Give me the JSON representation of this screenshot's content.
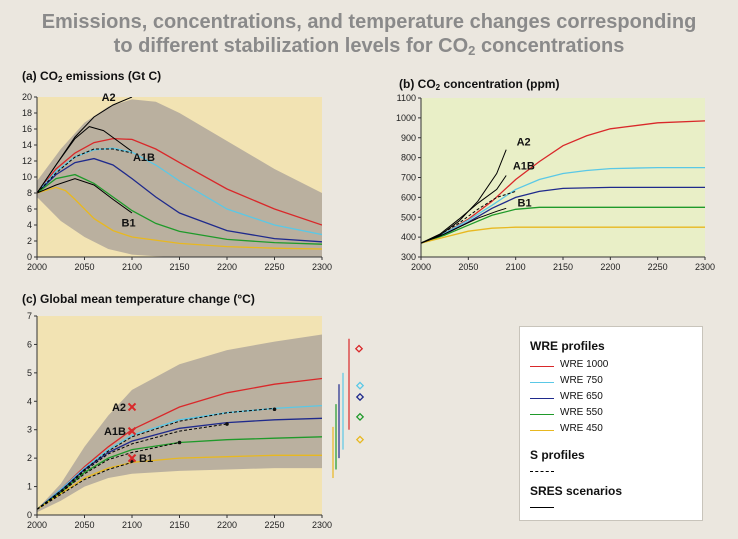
{
  "title": {
    "line1": "Emissions, concentrations, and temperature changes corresponding",
    "line2_pre": "to different stabilization levels for CO",
    "line2_sub": "2",
    "line2_post": " concentrations"
  },
  "colors": {
    "wre1000": "#d9282a",
    "wre750": "#5ac8e6",
    "wre650": "#1f2a8c",
    "wre550": "#1f9a2a",
    "wre450": "#e8b820",
    "sres": "#000000",
    "band": "#b0a79b",
    "bg_emissions": "#f2e3b3",
    "bg_concentration": "#e9efc7",
    "bg_temperature": "#f2e3b3"
  },
  "legend": {
    "wre_heading": "WRE profiles",
    "items": [
      {
        "key": "wre1000",
        "label": "WRE 1000"
      },
      {
        "key": "wre750",
        "label": "WRE 750"
      },
      {
        "key": "wre650",
        "label": "WRE 650"
      },
      {
        "key": "wre550",
        "label": "WRE 550"
      },
      {
        "key": "wre450",
        "label": "WRE 450"
      }
    ],
    "s_heading": "S profiles",
    "sres_heading": "SRES scenarios"
  },
  "chart_data": [
    {
      "id": "emissions",
      "type": "line",
      "title_pre": "(a) CO",
      "title_sub": "2",
      "title_post": " emissions (Gt C)",
      "xlim": [
        2000,
        2300
      ],
      "ylim": [
        0,
        20
      ],
      "xticks": [
        2000,
        2050,
        2100,
        2150,
        2200,
        2250,
        2300
      ],
      "yticks": [
        0,
        2,
        4,
        6,
        8,
        10,
        12,
        14,
        16,
        18,
        20
      ],
      "grid": false,
      "band": {
        "x": [
          2000,
          2025,
          2050,
          2075,
          2100,
          2125,
          2150,
          2200,
          2250,
          2300
        ],
        "upper": [
          9.5,
          13.5,
          16.8,
          18.8,
          19.7,
          19.4,
          18,
          14.5,
          11,
          8
        ],
        "lower": [
          7.5,
          4.5,
          2.5,
          1,
          0.3,
          0.1,
          0,
          0,
          0,
          0
        ]
      },
      "series": [
        {
          "key": "wre1000",
          "style": "solid",
          "x": [
            2000,
            2020,
            2040,
            2060,
            2080,
            2100,
            2125,
            2150,
            2200,
            2250,
            2300
          ],
          "y": [
            8,
            11,
            13,
            14.3,
            14.8,
            14.7,
            13.5,
            11.8,
            8.5,
            6,
            4
          ]
        },
        {
          "key": "wre750",
          "style": "solid",
          "x": [
            2000,
            2020,
            2040,
            2060,
            2080,
            2100,
            2125,
            2150,
            2200,
            2250,
            2300
          ],
          "y": [
            8,
            10.7,
            12.5,
            13.4,
            13.6,
            13.1,
            11.5,
            9.5,
            6,
            4,
            2.8
          ]
        },
        {
          "key": "wre650",
          "style": "solid",
          "x": [
            2000,
            2020,
            2040,
            2060,
            2080,
            2100,
            2125,
            2150,
            2200,
            2250,
            2300
          ],
          "y": [
            8,
            10.3,
            11.8,
            12.3,
            11.5,
            9.8,
            7.5,
            5.5,
            3.3,
            2.3,
            1.9
          ]
        },
        {
          "key": "wre550",
          "style": "solid",
          "x": [
            2000,
            2020,
            2040,
            2060,
            2080,
            2100,
            2125,
            2150,
            2200,
            2250,
            2300
          ],
          "y": [
            8,
            9.8,
            10.3,
            9.2,
            7.5,
            5.8,
            4.2,
            3.2,
            2.2,
            1.8,
            1.6
          ]
        },
        {
          "key": "wre450",
          "style": "solid",
          "x": [
            2000,
            2020,
            2030,
            2040,
            2060,
            2080,
            2100,
            2150,
            2200,
            2250,
            2300
          ],
          "y": [
            8,
            8.7,
            8.3,
            7.2,
            4.8,
            3.3,
            2.5,
            1.7,
            1.3,
            1.1,
            1
          ]
        },
        {
          "key": "sres",
          "style": "solid",
          "x": [
            2000,
            2020,
            2040,
            2060,
            2080,
            2100
          ],
          "y": [
            8,
            11.5,
            15,
            17.5,
            19,
            20
          ]
        },
        {
          "key": "sres",
          "style": "solid",
          "x": [
            2000,
            2020,
            2040,
            2055,
            2070,
            2085,
            2100
          ],
          "y": [
            8,
            11.5,
            14.8,
            16.3,
            15.8,
            14.5,
            13.2
          ]
        },
        {
          "key": "sres",
          "style": "solid",
          "x": [
            2000,
            2020,
            2040,
            2060,
            2080,
            2100
          ],
          "y": [
            8,
            9,
            9.8,
            9,
            7.2,
            5.5
          ]
        },
        {
          "key": "sres",
          "style": "dashed",
          "x": [
            2000,
            2020,
            2040,
            2060,
            2080,
            2100
          ],
          "y": [
            8,
            10.5,
            12.5,
            13.5,
            13.5,
            13
          ]
        }
      ],
      "annotations": [
        {
          "text": "A2",
          "x": 2068,
          "y": 19.5
        },
        {
          "text": "A1B",
          "x": 2101,
          "y": 12
        },
        {
          "text": "B1",
          "x": 2089,
          "y": 3.8
        }
      ]
    },
    {
      "id": "concentration",
      "type": "line",
      "title_pre": "(b) CO",
      "title_sub": "2",
      "title_post": " concentration (ppm)",
      "xlim": [
        2000,
        2300
      ],
      "ylim": [
        300,
        1100
      ],
      "xticks": [
        2000,
        2050,
        2100,
        2150,
        2200,
        2250,
        2300
      ],
      "yticks": [
        300,
        400,
        500,
        600,
        700,
        800,
        900,
        1000,
        1100
      ],
      "grid": false,
      "series": [
        {
          "key": "wre1000",
          "style": "solid",
          "x": [
            2000,
            2025,
            2050,
            2075,
            2100,
            2125,
            2150,
            2175,
            2200,
            2250,
            2300
          ],
          "y": [
            370,
            420,
            490,
            580,
            690,
            780,
            860,
            910,
            945,
            975,
            985
          ]
        },
        {
          "key": "wre750",
          "style": "solid",
          "x": [
            2000,
            2025,
            2050,
            2075,
            2100,
            2125,
            2150,
            2175,
            2200,
            2250,
            2300
          ],
          "y": [
            370,
            420,
            485,
            560,
            640,
            690,
            720,
            735,
            745,
            750,
            750
          ]
        },
        {
          "key": "wre650",
          "style": "solid",
          "x": [
            2000,
            2025,
            2050,
            2075,
            2100,
            2125,
            2150,
            2200,
            2250,
            2300
          ],
          "y": [
            370,
            415,
            475,
            545,
            600,
            630,
            645,
            650,
            650,
            650
          ]
        },
        {
          "key": "wre550",
          "style": "solid",
          "x": [
            2000,
            2025,
            2050,
            2075,
            2100,
            2125,
            2150,
            2200,
            2250,
            2300
          ],
          "y": [
            370,
            410,
            460,
            510,
            540,
            550,
            550,
            550,
            550,
            550
          ]
        },
        {
          "key": "wre450",
          "style": "solid",
          "x": [
            2000,
            2025,
            2050,
            2075,
            2100,
            2125,
            2150,
            2200,
            2250,
            2300
          ],
          "y": [
            370,
            400,
            430,
            445,
            450,
            450,
            450,
            450,
            450,
            450
          ]
        },
        {
          "key": "sres",
          "style": "solid",
          "x": [
            2000,
            2020,
            2040,
            2060,
            2080,
            2090
          ],
          "y": [
            370,
            410,
            480,
            580,
            720,
            840
          ]
        },
        {
          "key": "sres",
          "style": "solid",
          "x": [
            2000,
            2020,
            2040,
            2060,
            2080,
            2090
          ],
          "y": [
            370,
            415,
            490,
            570,
            640,
            710
          ]
        },
        {
          "key": "sres",
          "style": "solid",
          "x": [
            2000,
            2020,
            2040,
            2060,
            2080,
            2090
          ],
          "y": [
            370,
            405,
            450,
            495,
            530,
            545
          ]
        },
        {
          "key": "sres",
          "style": "dashed",
          "x": [
            2000,
            2020,
            2040,
            2060,
            2080,
            2100
          ],
          "y": [
            370,
            412,
            470,
            540,
            600,
            630
          ]
        }
      ],
      "annotations": [
        {
          "text": "A2",
          "x": 2101,
          "y": 860
        },
        {
          "text": "A1B",
          "x": 2097,
          "y": 740
        },
        {
          "text": "B1",
          "x": 2102,
          "y": 555
        }
      ]
    },
    {
      "id": "temperature",
      "type": "line",
      "title": "(c) Global mean temperature change (°C)",
      "xlim": [
        2000,
        2300
      ],
      "ylim": [
        0,
        7
      ],
      "xticks": [
        2000,
        2050,
        2100,
        2150,
        2200,
        2250,
        2300
      ],
      "yticks": [
        0,
        1,
        2,
        3,
        4,
        5,
        6,
        7
      ],
      "grid": false,
      "band": {
        "x": [
          2000,
          2025,
          2050,
          2075,
          2100,
          2150,
          2200,
          2250,
          2300
        ],
        "upper": [
          0.2,
          1.1,
          2.4,
          3.5,
          4.4,
          5.3,
          5.8,
          6.1,
          6.35
        ],
        "lower": [
          0.1,
          0.5,
          1,
          1.3,
          1.45,
          1.55,
          1.6,
          1.65,
          1.65
        ]
      },
      "series": [
        {
          "key": "wre1000",
          "style": "solid",
          "x": [
            2000,
            2025,
            2050,
            2075,
            2100,
            2150,
            2200,
            2250,
            2300
          ],
          "y": [
            0.2,
            0.9,
            1.7,
            2.4,
            3.0,
            3.8,
            4.3,
            4.6,
            4.8
          ]
        },
        {
          "key": "wre750",
          "style": "solid",
          "x": [
            2000,
            2025,
            2050,
            2075,
            2100,
            2150,
            2200,
            2250,
            2300
          ],
          "y": [
            0.2,
            0.9,
            1.65,
            2.3,
            2.8,
            3.35,
            3.6,
            3.75,
            3.85
          ]
        },
        {
          "key": "wre650",
          "style": "solid",
          "x": [
            2000,
            2025,
            2050,
            2075,
            2100,
            2150,
            2200,
            2250,
            2300
          ],
          "y": [
            0.2,
            0.85,
            1.6,
            2.2,
            2.6,
            3.05,
            3.25,
            3.35,
            3.4
          ]
        },
        {
          "key": "wre550",
          "style": "solid",
          "x": [
            2000,
            2025,
            2050,
            2075,
            2100,
            2150,
            2200,
            2250,
            2300
          ],
          "y": [
            0.2,
            0.8,
            1.5,
            2.0,
            2.3,
            2.55,
            2.65,
            2.7,
            2.75
          ]
        },
        {
          "key": "wre450",
          "style": "solid",
          "x": [
            2000,
            2025,
            2050,
            2075,
            2100,
            2150,
            2200,
            2250,
            2300
          ],
          "y": [
            0.2,
            0.75,
            1.3,
            1.65,
            1.85,
            2.0,
            2.05,
            2.1,
            2.1
          ]
        },
        {
          "key": "sres",
          "style": "dashed",
          "x": [
            2000,
            2025,
            2050,
            2075,
            2100,
            2150,
            2200,
            2250
          ],
          "y": [
            0.2,
            0.85,
            1.6,
            2.25,
            2.75,
            3.3,
            3.6,
            3.75
          ]
        },
        {
          "key": "sres",
          "style": "dashed",
          "x": [
            2000,
            2025,
            2050,
            2075,
            2100,
            2150,
            2200
          ],
          "y": [
            0.2,
            0.8,
            1.55,
            2.15,
            2.5,
            2.95,
            3.2
          ]
        },
        {
          "key": "sres",
          "style": "dashed",
          "x": [
            2000,
            2025,
            2050,
            2075,
            2100,
            2150
          ],
          "y": [
            0.2,
            0.78,
            1.45,
            1.95,
            2.2,
            2.55
          ]
        },
        {
          "key": "sres",
          "style": "dashed",
          "x": [
            2000,
            2025,
            2050,
            2075,
            2100
          ],
          "y": [
            0.2,
            0.72,
            1.25,
            1.6,
            1.85
          ]
        }
      ],
      "points": [
        {
          "x": 2100,
          "y": 1.9
        },
        {
          "x": 2150,
          "y": 2.55
        },
        {
          "x": 2200,
          "y": 3.2
        },
        {
          "x": 2250,
          "y": 3.72
        }
      ],
      "sres_markers": [
        {
          "text": "A2",
          "x": 2100,
          "y": 3.8
        },
        {
          "text": "A1B",
          "x": 2100,
          "y": 2.95
        },
        {
          "text": "B1",
          "x": 2100,
          "y": 2.0
        }
      ],
      "equilibrium": [
        {
          "key": "wre1000",
          "low": 3.0,
          "high": 6.2,
          "mark": 5.85
        },
        {
          "key": "wre750",
          "low": 2.3,
          "high": 5.0,
          "mark": 4.55
        },
        {
          "key": "wre650",
          "low": 2.0,
          "high": 4.6,
          "mark": 4.15
        },
        {
          "key": "wre550",
          "low": 1.6,
          "high": 3.9,
          "mark": 3.45
        },
        {
          "key": "wre450",
          "low": 1.3,
          "high": 3.1,
          "mark": 2.65
        }
      ]
    }
  ]
}
